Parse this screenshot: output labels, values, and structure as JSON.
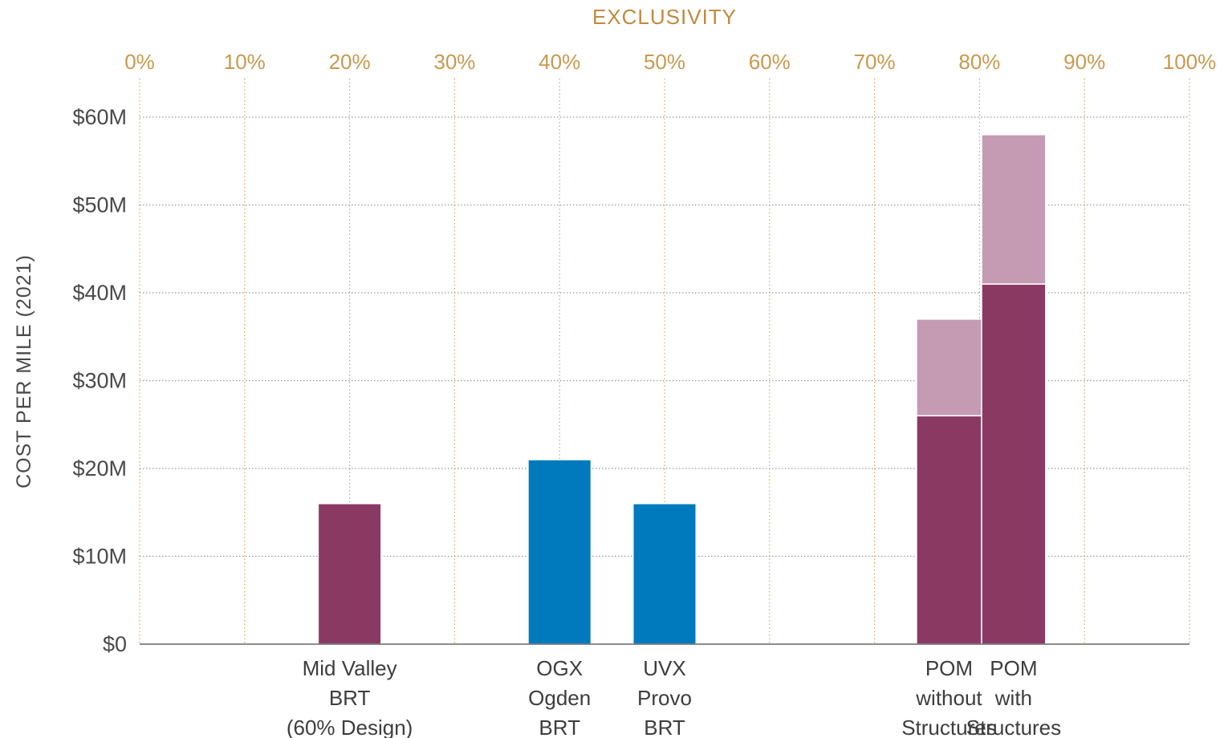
{
  "chart_data": {
    "type": "bar",
    "title": "",
    "x2label": "EXCLUSIVITY",
    "ylabel": "COST PER MILE (2021)",
    "x2_ticks": [
      "0%",
      "10%",
      "20%",
      "30%",
      "40%",
      "50%",
      "60%",
      "70%",
      "80%",
      "90%",
      "100%"
    ],
    "x2_range": [
      0,
      100
    ],
    "y_ticks": [
      "$0",
      "$10M",
      "$20M",
      "$30M",
      "$40M",
      "$50M",
      "$60M"
    ],
    "ylim": [
      0,
      60
    ],
    "grid": true,
    "colors": {
      "bar_dark": "#8a3a62",
      "bar_light": "#c49bb3",
      "bar_blue": "#007abd",
      "tick_gold": "#c9994f",
      "grid_gold": "#d8a463",
      "grid_gray": "#999999"
    },
    "bars": [
      {
        "label_lines": [
          "Mid Valley",
          "BRT",
          "(60% Design)"
        ],
        "x_start": 17,
        "x_end": 23,
        "segments": [
          {
            "value": 16,
            "color": "#8a3a62"
          }
        ]
      },
      {
        "label_lines": [
          "OGX",
          "Ogden",
          "BRT"
        ],
        "x_start": 37,
        "x_end": 43,
        "segments": [
          {
            "value": 21,
            "color": "#007abd"
          }
        ]
      },
      {
        "label_lines": [
          "UVX",
          "Provo",
          "BRT"
        ],
        "x_start": 47,
        "x_end": 53,
        "segments": [
          {
            "value": 16,
            "color": "#007abd"
          }
        ]
      },
      {
        "label_lines": [
          "POM",
          "without",
          "Structures"
        ],
        "x_start": 74,
        "x_end": 80.2,
        "segments": [
          {
            "value": 26,
            "color": "#8a3a62"
          },
          {
            "value": 11,
            "color": "#c49bb3"
          }
        ]
      },
      {
        "label_lines": [
          "POM",
          "with",
          "Structures"
        ],
        "x_start": 80.2,
        "x_end": 86.3,
        "segments": [
          {
            "value": 41,
            "color": "#8a3a62"
          },
          {
            "value": 17,
            "color": "#c49bb3"
          }
        ]
      }
    ]
  }
}
